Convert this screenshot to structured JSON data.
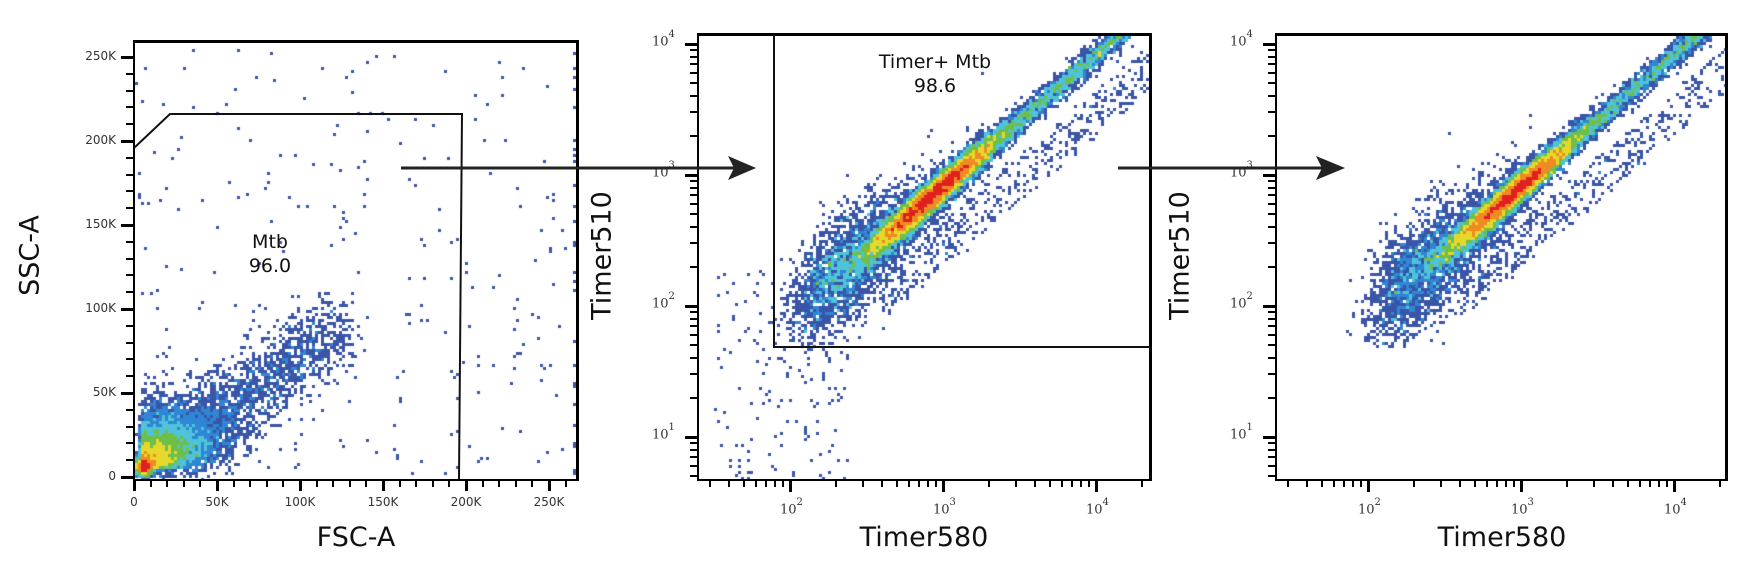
{
  "figure": {
    "arrows": [
      {
        "from_panel": 1,
        "to_panel": 2
      },
      {
        "from_panel": 2,
        "to_panel": 3
      }
    ],
    "density_colors": [
      "#3a55a8",
      "#2f86d4",
      "#4fc3d9",
      "#6dbf4a",
      "#e6d82a",
      "#f08a22",
      "#e0201e"
    ]
  },
  "panels": [
    {
      "id": "fsc-ssc",
      "x_title": "FSC-A",
      "y_title": "SSC-A",
      "x_scale": "linear",
      "y_scale": "linear",
      "x_tick_labels": [
        "0",
        "50K",
        "100K",
        "150K",
        "200K",
        "250K"
      ],
      "y_tick_labels": [
        "0",
        "50K",
        "100K",
        "150K",
        "200K",
        "250K"
      ],
      "gate": {
        "name": "Mtb",
        "percent": "96.0",
        "shape": "polygon"
      }
    },
    {
      "id": "timer-gate",
      "x_title": "Timer580",
      "y_title": "Timer510",
      "x_scale": "log",
      "y_scale": "log",
      "x_tick_labels": [
        {
          "base": "10",
          "exp": "2"
        },
        {
          "base": "10",
          "exp": "3"
        },
        {
          "base": "10",
          "exp": "4"
        }
      ],
      "y_tick_labels": [
        {
          "base": "10",
          "exp": "1"
        },
        {
          "base": "10",
          "exp": "2"
        },
        {
          "base": "10",
          "exp": "3"
        },
        {
          "base": "10",
          "exp": "4"
        }
      ],
      "gate": {
        "name": "Timer+ Mtb",
        "percent": "98.6",
        "shape": "rectangle"
      }
    },
    {
      "id": "timer-gated-result",
      "x_title": "Timer580",
      "y_title": "Timer510",
      "x_scale": "log",
      "y_scale": "log",
      "x_tick_labels": [
        {
          "base": "10",
          "exp": "2"
        },
        {
          "base": "10",
          "exp": "3"
        },
        {
          "base": "10",
          "exp": "4"
        }
      ],
      "y_tick_labels": [
        {
          "base": "10",
          "exp": "1"
        },
        {
          "base": "10",
          "exp": "2"
        },
        {
          "base": "10",
          "exp": "3"
        },
        {
          "base": "10",
          "exp": "4"
        }
      ]
    }
  ],
  "chart_data": [
    {
      "type": "scatter",
      "subtype": "flow-cytometry-density",
      "title": "",
      "xlabel": "FSC-A",
      "ylabel": "SSC-A",
      "xlim": [
        0,
        266000
      ],
      "ylim": [
        0,
        262000
      ],
      "x_ticks": [
        0,
        50000,
        100000,
        150000,
        200000,
        250000
      ],
      "y_ticks": [
        0,
        50000,
        100000,
        150000,
        200000,
        250000
      ],
      "x_tick_labels": [
        "0",
        "50K",
        "100K",
        "150K",
        "200K",
        "250K"
      ],
      "y_tick_labels": [
        "0",
        "50K",
        "100K",
        "150K",
        "200K",
        "250K"
      ],
      "grid": false,
      "density_peak": {
        "x": 5000,
        "y": 6000
      },
      "gates": [
        {
          "name": "Mtb",
          "percent": 96.0,
          "polygon": [
            [
              0,
              208000
            ],
            [
              20000,
              225000
            ],
            [
              190000,
              225000
            ],
            [
              185000,
              0
            ],
            [
              0,
              0
            ]
          ]
        }
      ]
    },
    {
      "type": "scatter",
      "subtype": "flow-cytometry-density",
      "title": "",
      "xlabel": "Timer580",
      "ylabel": "Timer510",
      "x_scale": "log",
      "y_scale": "log",
      "xlim": [
        30,
        25000
      ],
      "ylim": [
        3,
        25000
      ],
      "x_tick_labels": [
        "10^2",
        "10^3",
        "10^4"
      ],
      "y_tick_labels": [
        "10^1",
        "10^2",
        "10^3",
        "10^4"
      ],
      "grid": false,
      "density_peak": {
        "x": 850,
        "y": 700
      },
      "gates": [
        {
          "name": "Timer+ Mtb",
          "percent": 98.6,
          "rectangle": {
            "x_min": 70,
            "x_max": 25000,
            "y_min": 48,
            "y_max": 25000
          }
        }
      ]
    },
    {
      "type": "scatter",
      "subtype": "flow-cytometry-density",
      "title": "",
      "xlabel": "Timer580",
      "ylabel": "Timer510",
      "x_scale": "log",
      "y_scale": "log",
      "xlim": [
        30,
        25000
      ],
      "ylim": [
        3,
        25000
      ],
      "x_tick_labels": [
        "10^2",
        "10^3",
        "10^4"
      ],
      "y_tick_labels": [
        "10^1",
        "10^2",
        "10^3",
        "10^4"
      ],
      "grid": false,
      "density_peak": {
        "x": 850,
        "y": 700
      },
      "gates": []
    }
  ]
}
